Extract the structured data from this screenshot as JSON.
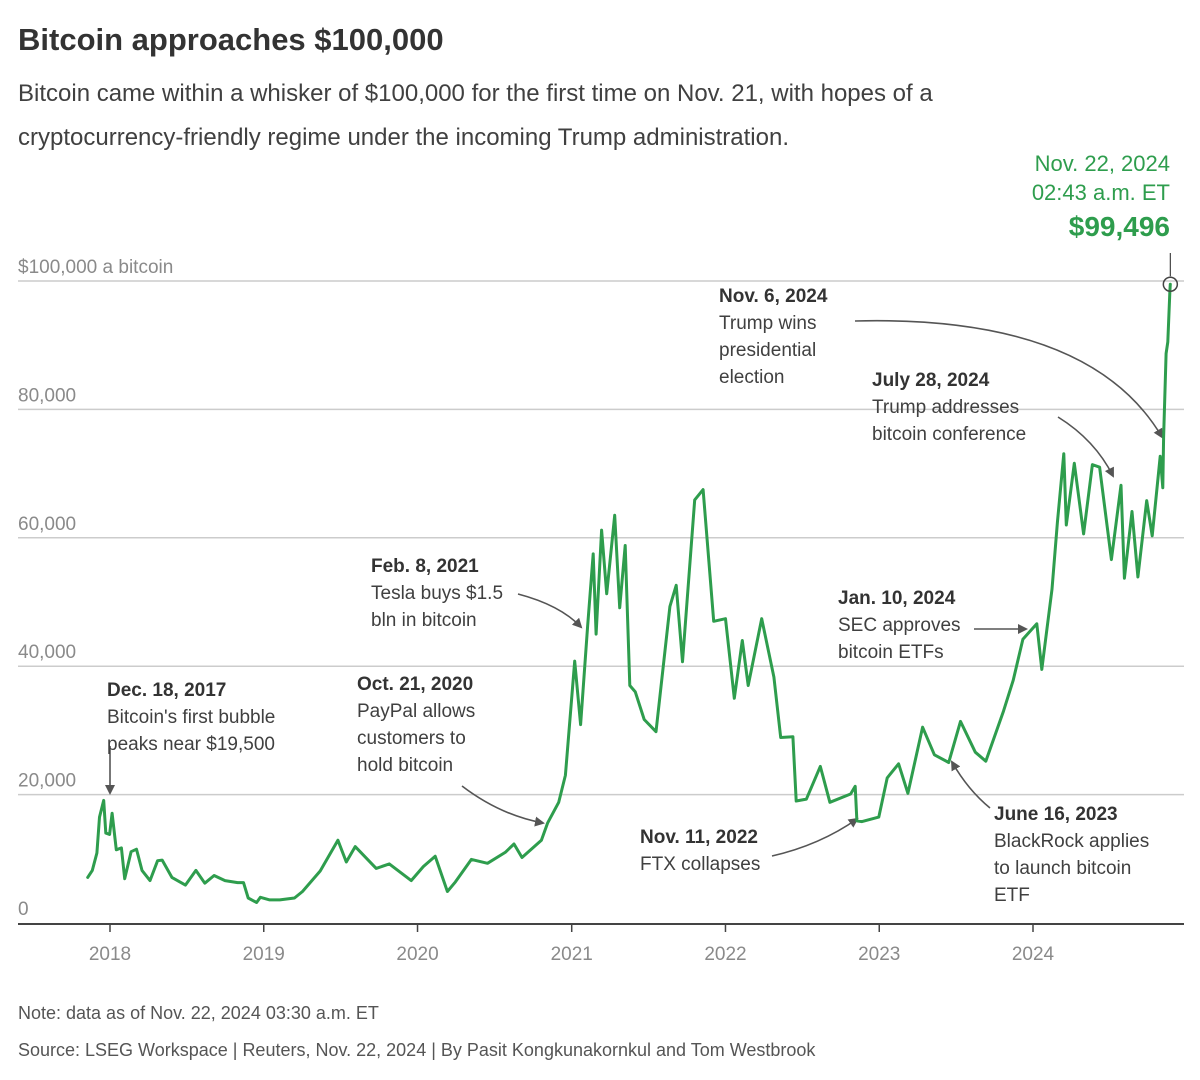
{
  "title": "Bitcoin approaches $100,000",
  "subtitle": "Bitcoin came within a whisker of $100,000 for the first time on Nov. 21, with hopes of a cryptocurrency-friendly regime under the incoming Trump administration.",
  "note": "Note: data as of Nov. 22, 2024 03:30 a.m. ET",
  "source": "Source: LSEG Workspace | Reuters, Nov. 22, 2024 | By Pasit Kongkunakornkul and Tom Westbrook",
  "colors": {
    "line": "#2e9d4d",
    "grid": "#cccccc",
    "axis": "#444444",
    "arrow": "#555555"
  },
  "chart_data": {
    "type": "line",
    "ylim": [
      0,
      100000
    ],
    "xlim": [
      "2017-11-09",
      "2024-12-31"
    ],
    "grid": true,
    "y_ticks": [
      {
        "value": 0,
        "label": "0"
      },
      {
        "value": 20000,
        "label": "20,000"
      },
      {
        "value": 40000,
        "label": "40,000"
      },
      {
        "value": 60000,
        "label": "60,000"
      },
      {
        "value": 80000,
        "label": "80,000"
      },
      {
        "value": 100000,
        "label": "$100,000 a bitcoin"
      }
    ],
    "x_ticks": [
      {
        "date": "2018-01-01",
        "label": "2018"
      },
      {
        "date": "2019-01-01",
        "label": "2019"
      },
      {
        "date": "2020-01-01",
        "label": "2020"
      },
      {
        "date": "2021-01-01",
        "label": "2021"
      },
      {
        "date": "2022-01-01",
        "label": "2022"
      },
      {
        "date": "2023-01-01",
        "label": "2023"
      },
      {
        "date": "2024-01-01",
        "label": "2024"
      }
    ],
    "series": [
      {
        "points": [
          [
            "2017-11-09",
            7100
          ],
          [
            "2017-11-20",
            8200
          ],
          [
            "2017-12-01",
            10900
          ],
          [
            "2017-12-07",
            16500
          ],
          [
            "2017-12-17",
            19100
          ],
          [
            "2017-12-22",
            14000
          ],
          [
            "2017-12-31",
            13800
          ],
          [
            "2018-01-06",
            17100
          ],
          [
            "2018-01-16",
            11400
          ],
          [
            "2018-01-28",
            11700
          ],
          [
            "2018-02-05",
            6900
          ],
          [
            "2018-02-20",
            11100
          ],
          [
            "2018-03-05",
            11500
          ],
          [
            "2018-03-18",
            8200
          ],
          [
            "2018-04-06",
            6600
          ],
          [
            "2018-04-24",
            9700
          ],
          [
            "2018-05-05",
            9800
          ],
          [
            "2018-05-28",
            7100
          ],
          [
            "2018-06-29",
            5900
          ],
          [
            "2018-07-24",
            8200
          ],
          [
            "2018-08-14",
            6200
          ],
          [
            "2018-09-05",
            7400
          ],
          [
            "2018-10-01",
            6600
          ],
          [
            "2018-10-31",
            6300
          ],
          [
            "2018-11-14",
            6300
          ],
          [
            "2018-11-25",
            3900
          ],
          [
            "2018-12-15",
            3200
          ],
          [
            "2018-12-24",
            4000
          ],
          [
            "2019-01-15",
            3600
          ],
          [
            "2019-02-08",
            3600
          ],
          [
            "2019-03-15",
            3900
          ],
          [
            "2019-04-03",
            4900
          ],
          [
            "2019-05-15",
            8100
          ],
          [
            "2019-06-26",
            12900
          ],
          [
            "2019-07-16",
            9500
          ],
          [
            "2019-08-06",
            11900
          ],
          [
            "2019-09-25",
            8500
          ],
          [
            "2019-10-26",
            9200
          ],
          [
            "2019-12-17",
            6600
          ],
          [
            "2020-01-15",
            8800
          ],
          [
            "2020-02-12",
            10400
          ],
          [
            "2020-03-12",
            4900
          ],
          [
            "2020-03-31",
            6400
          ],
          [
            "2020-05-08",
            9900
          ],
          [
            "2020-06-15",
            9300
          ],
          [
            "2020-07-27",
            11000
          ],
          [
            "2020-08-17",
            12300
          ],
          [
            "2020-09-05",
            10200
          ],
          [
            "2020-10-21",
            12900
          ],
          [
            "2020-11-05",
            15600
          ],
          [
            "2020-12-01",
            18800
          ],
          [
            "2020-12-17",
            23000
          ],
          [
            "2021-01-08",
            40800
          ],
          [
            "2021-01-22",
            30900
          ],
          [
            "2021-02-08",
            46400
          ],
          [
            "2021-02-21",
            57500
          ],
          [
            "2021-02-28",
            45000
          ],
          [
            "2021-03-13",
            61200
          ],
          [
            "2021-03-25",
            51300
          ],
          [
            "2021-04-13",
            63500
          ],
          [
            "2021-04-25",
            49100
          ],
          [
            "2021-05-08",
            58800
          ],
          [
            "2021-05-19",
            37000
          ],
          [
            "2021-06-01",
            36000
          ],
          [
            "2021-06-22",
            31700
          ],
          [
            "2021-07-20",
            29800
          ],
          [
            "2021-08-22",
            49300
          ],
          [
            "2021-09-06",
            52600
          ],
          [
            "2021-09-21",
            40700
          ],
          [
            "2021-10-20",
            65900
          ],
          [
            "2021-11-09",
            67500
          ],
          [
            "2021-12-04",
            47000
          ],
          [
            "2022-01-01",
            47400
          ],
          [
            "2022-01-22",
            35000
          ],
          [
            "2022-02-10",
            44000
          ],
          [
            "2022-02-24",
            37000
          ],
          [
            "2022-03-28",
            47400
          ],
          [
            "2022-04-26",
            38300
          ],
          [
            "2022-05-12",
            28900
          ],
          [
            "2022-06-10",
            29000
          ],
          [
            "2022-06-18",
            19000
          ],
          [
            "2022-07-12",
            19300
          ],
          [
            "2022-08-14",
            24400
          ],
          [
            "2022-09-06",
            18800
          ],
          [
            "2022-10-25",
            20100
          ],
          [
            "2022-11-05",
            21300
          ],
          [
            "2022-11-09",
            15900
          ],
          [
            "2022-11-21",
            15800
          ],
          [
            "2022-12-31",
            16500
          ],
          [
            "2023-01-20",
            22600
          ],
          [
            "2023-02-16",
            24800
          ],
          [
            "2023-03-10",
            20200
          ],
          [
            "2023-04-14",
            30500
          ],
          [
            "2023-05-12",
            26200
          ],
          [
            "2023-06-15",
            25000
          ],
          [
            "2023-07-13",
            31400
          ],
          [
            "2023-08-17",
            26600
          ],
          [
            "2023-09-11",
            25200
          ],
          [
            "2023-10-23",
            33000
          ],
          [
            "2023-11-15",
            37800
          ],
          [
            "2023-12-08",
            44200
          ],
          [
            "2024-01-10",
            46600
          ],
          [
            "2024-01-22",
            39500
          ],
          [
            "2024-02-15",
            52000
          ],
          [
            "2024-02-28",
            62400
          ],
          [
            "2024-03-14",
            73100
          ],
          [
            "2024-03-20",
            62000
          ],
          [
            "2024-04-08",
            71600
          ],
          [
            "2024-04-30",
            60600
          ],
          [
            "2024-05-21",
            71400
          ],
          [
            "2024-06-07",
            71000
          ],
          [
            "2024-07-05",
            56600
          ],
          [
            "2024-07-28",
            68200
          ],
          [
            "2024-08-05",
            53700
          ],
          [
            "2024-08-23",
            64100
          ],
          [
            "2024-09-06",
            53900
          ],
          [
            "2024-09-27",
            65800
          ],
          [
            "2024-10-10",
            60300
          ],
          [
            "2024-10-29",
            72700
          ],
          [
            "2024-11-04",
            67800
          ],
          [
            "2024-11-06",
            75600
          ],
          [
            "2024-11-12",
            88700
          ],
          [
            "2024-11-16",
            90500
          ],
          [
            "2024-11-21",
            98500
          ],
          [
            "2024-11-22",
            99496
          ]
        ]
      }
    ],
    "latest": {
      "date": "2024-11-22",
      "value": 99496,
      "date_label": "Nov. 22, 2024",
      "time_label": "02:43 a.m. ET",
      "value_label": "$99,496"
    },
    "annotations": [
      {
        "date_label": "Dec. 18, 2017",
        "lines": [
          "Bitcoin's first bubble",
          "peaks near $19,500"
        ]
      },
      {
        "date_label": "Oct. 21, 2020",
        "lines": [
          "PayPal allows",
          "customers to",
          "hold bitcoin"
        ]
      },
      {
        "date_label": "Feb. 8, 2021",
        "lines": [
          "Tesla buys $1.5",
          "bln in bitcoin"
        ]
      },
      {
        "date_label": "Nov. 11, 2022",
        "lines": [
          "FTX collapses"
        ]
      },
      {
        "date_label": "June 16, 2023",
        "lines": [
          "BlackRock applies",
          "to launch bitcoin",
          "ETF"
        ]
      },
      {
        "date_label": "Jan. 10, 2024",
        "lines": [
          "SEC approves",
          "bitcoin ETFs"
        ]
      },
      {
        "date_label": "July 28, 2024",
        "lines": [
          "Trump addresses",
          "bitcoin conference"
        ]
      },
      {
        "date_label": "Nov. 6, 2024",
        "lines": [
          "Trump wins",
          "presidential",
          "election"
        ]
      }
    ]
  }
}
